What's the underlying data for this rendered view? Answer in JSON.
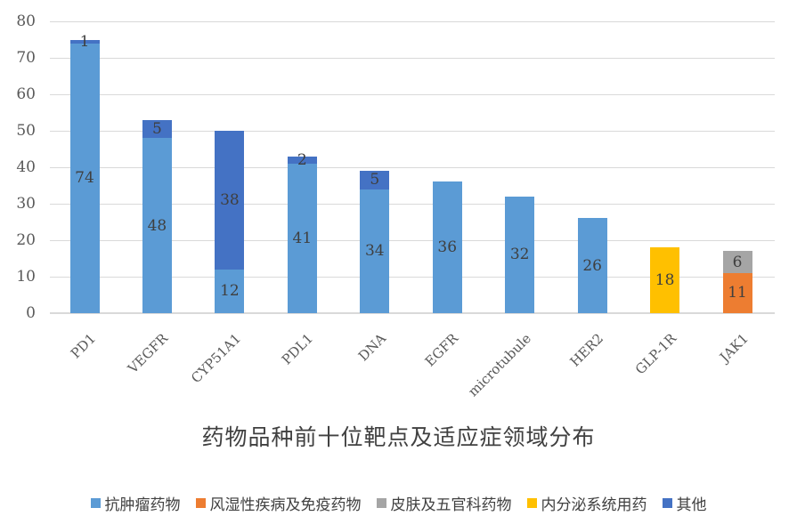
{
  "title": "药物品种前十位靶点及适应症领域分布",
  "colors": {
    "anti_tumor": "#5B9BD5",
    "rheumatic_immune": "#ED7D31",
    "derm_ent": "#A5A5A5",
    "endocrine": "#FFC000",
    "other": "#4472C4",
    "gridline": "#D9D9D9",
    "axis_text": "#595959",
    "label_text": "#3F3F3F"
  },
  "legend": [
    {
      "label": "抗肿瘤药物",
      "color": "#5B9BD5"
    },
    {
      "label": "风湿性疾病及免疫药物",
      "color": "#ED7D31"
    },
    {
      "label": "皮肤及五官科药物",
      "color": "#A5A5A5"
    },
    {
      "label": "内分泌系统用药",
      "color": "#FFC000"
    },
    {
      "label": "其他",
      "color": "#4472C4"
    }
  ],
  "chart_data": {
    "type": "bar",
    "stacked": true,
    "title": "药物品种前十位靶点及适应症领域分布",
    "xlabel": "",
    "ylabel": "",
    "ylim": [
      0,
      80
    ],
    "yticks": [
      0,
      10,
      20,
      30,
      40,
      50,
      60,
      70,
      80
    ],
    "grid": true,
    "legend_position": "bottom",
    "data_labels": true,
    "categories": [
      "PD1",
      "VEGFR",
      "CYP51A1",
      "PDL1",
      "DNA",
      "EGFR",
      "microtubule",
      "HER2",
      "GLP-1R",
      "JAK1"
    ],
    "series": [
      {
        "name": "抗肿瘤药物",
        "color": "#5B9BD5",
        "values": [
          74,
          48,
          12,
          41,
          34,
          36,
          32,
          26,
          0,
          0
        ]
      },
      {
        "name": "风湿性疾病及免疫药物",
        "color": "#ED7D31",
        "values": [
          0,
          0,
          0,
          0,
          0,
          0,
          0,
          0,
          0,
          11
        ]
      },
      {
        "name": "皮肤及五官科药物",
        "color": "#A5A5A5",
        "values": [
          0,
          0,
          0,
          0,
          0,
          0,
          0,
          0,
          0,
          6
        ]
      },
      {
        "name": "内分泌系统用药",
        "color": "#FFC000",
        "values": [
          0,
          0,
          0,
          0,
          0,
          0,
          0,
          0,
          18,
          0
        ]
      },
      {
        "name": "其他",
        "color": "#4472C4",
        "values": [
          1,
          5,
          38,
          2,
          5,
          0,
          0,
          0,
          0,
          0
        ]
      }
    ],
    "totals": [
      75,
      53,
      50,
      43,
      39,
      36,
      32,
      26,
      18,
      17
    ]
  }
}
